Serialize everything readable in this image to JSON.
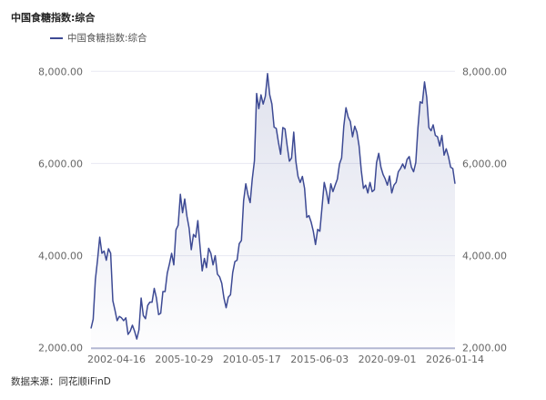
{
  "title": "中国食糖指数:综合",
  "source": "数据来源：同花顺iFinD",
  "chart_data": {
    "type": "area",
    "title": "中国食糖指数:综合",
    "xlabel": "",
    "ylabel": "",
    "x_axis": "category",
    "x_ticks": [
      "2002-04-16",
      "2005-10-29",
      "2010-05-17",
      "2015-06-03",
      "2020-09-01",
      "2026-01-14"
    ],
    "y_ticks": [
      "2,000.00",
      "4,000.00",
      "6,000.00",
      "8,000.00"
    ],
    "ylim": [
      2000,
      8000
    ],
    "grid": true,
    "dual_y_axis_labels": true,
    "legend": "top-left",
    "color": "#3d4a94",
    "series": [
      {
        "name": "中国食糖指数:综合",
        "values": [
          2420,
          2620,
          3480,
          3910,
          4400,
          4050,
          4100,
          3900,
          4150,
          4050,
          3020,
          2820,
          2590,
          2680,
          2650,
          2590,
          2650,
          2290,
          2360,
          2490,
          2360,
          2190,
          2390,
          3080,
          2700,
          2630,
          2920,
          2990,
          2990,
          3290,
          3080,
          2720,
          2750,
          3220,
          3220,
          3620,
          3820,
          4050,
          3800,
          4560,
          4660,
          5330,
          4930,
          5230,
          4860,
          4600,
          4130,
          4460,
          4400,
          4760,
          4200,
          3670,
          3940,
          3740,
          4160,
          4050,
          3800,
          4000,
          3600,
          3540,
          3400,
          3080,
          2870,
          3100,
          3150,
          3630,
          3870,
          3900,
          4260,
          4330,
          5190,
          5560,
          5320,
          5150,
          5660,
          6060,
          7520,
          7190,
          7490,
          7290,
          7460,
          7950,
          7490,
          7290,
          6790,
          6760,
          6460,
          6200,
          6780,
          6750,
          6380,
          6050,
          6120,
          6680,
          6050,
          5720,
          5590,
          5720,
          5460,
          4830,
          4870,
          4730,
          4530,
          4240,
          4570,
          4530,
          5060,
          5590,
          5390,
          5130,
          5560,
          5390,
          5530,
          5660,
          5990,
          6120,
          6810,
          7210,
          7010,
          6910,
          6580,
          6810,
          6680,
          6380,
          5850,
          5460,
          5530,
          5360,
          5590,
          5390,
          5430,
          6020,
          6220,
          5920,
          5760,
          5660,
          5530,
          5730,
          5360,
          5530,
          5590,
          5820,
          5890,
          5990,
          5890,
          6090,
          6150,
          5920,
          5820,
          6020,
          6780,
          7340,
          7310,
          7770,
          7440,
          6780,
          6710,
          6840,
          6610,
          6580,
          6380,
          6610,
          6180,
          6320,
          6150,
          5920,
          5890,
          5560
        ]
      }
    ]
  }
}
